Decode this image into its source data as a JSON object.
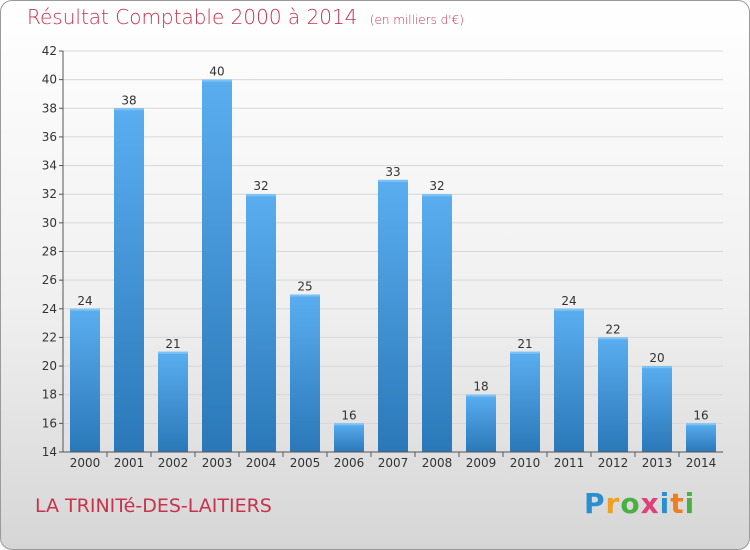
{
  "header": {
    "title": "Résultat Comptable 2000 à 2014",
    "subtitle": "(en milliers d'€)"
  },
  "footer": {
    "commune": "LA TRINITé-DES-LAITIERS",
    "logo_text": "Proxiti"
  },
  "colors": {
    "title": "#c8324a",
    "bar_top": "#5aaef0",
    "bar_bottom": "#2a78b8",
    "grid": "#d8d8d8",
    "axis": "#555555"
  },
  "chart_data": {
    "type": "bar",
    "title": "Résultat Comptable 2000 à 2014",
    "subtitle": "(en milliers d'€)",
    "categories": [
      "2000",
      "2001",
      "2002",
      "2003",
      "2004",
      "2005",
      "2006",
      "2007",
      "2008",
      "2009",
      "2010",
      "2011",
      "2012",
      "2013",
      "2014"
    ],
    "values": [
      24,
      38,
      21,
      40,
      32,
      25,
      16,
      33,
      32,
      18,
      21,
      24,
      22,
      20,
      16
    ],
    "ylim": [
      14,
      42
    ],
    "yticks": [
      14,
      16,
      18,
      20,
      22,
      24,
      26,
      28,
      30,
      32,
      34,
      36,
      38,
      40,
      42
    ],
    "grid": true,
    "data_labels": true
  }
}
